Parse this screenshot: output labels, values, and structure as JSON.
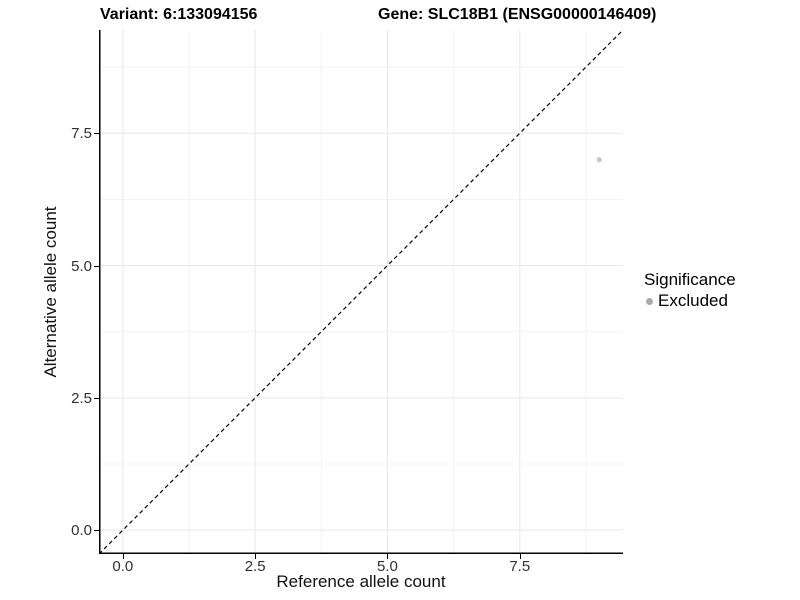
{
  "header": {
    "variant_title": "Variant: 6:133094156",
    "gene_title": "Gene: SLC18B1 (ENSG00000146409)"
  },
  "legend": {
    "title": "Significance",
    "entries": [
      {
        "label": "Excluded",
        "color": "#ababab"
      }
    ]
  },
  "chart_data": {
    "type": "scatter",
    "title_left": "Variant: 6:133094156",
    "title_right": "Gene: SLC18B1 (ENSG00000146409)",
    "xlabel": "Reference allele count",
    "ylabel": "Alternative allele count",
    "xlim": [
      -0.45,
      9.45
    ],
    "ylim": [
      -0.45,
      9.45
    ],
    "x_ticks": {
      "major": [
        0.0,
        2.5,
        5.0,
        7.5
      ],
      "labels": [
        "0.0",
        "2.5",
        "5.0",
        "7.5"
      ],
      "minor": [
        1.25,
        3.75,
        6.25,
        8.75
      ]
    },
    "y_ticks": {
      "major": [
        0.0,
        2.5,
        5.0,
        7.5
      ],
      "labels": [
        "0.0",
        "2.5",
        "5.0",
        "7.5"
      ],
      "minor": [
        1.25,
        3.75,
        6.25,
        8.75
      ]
    },
    "grid": "on",
    "legend_position": "right",
    "series": [
      {
        "name": "Excluded",
        "color": "#c6c6c6",
        "points": [
          {
            "x": 9,
            "y": 7
          }
        ]
      }
    ],
    "reference_line": {
      "type": "identity y=x",
      "style": "dashed",
      "color": "#000000",
      "x1": -0.45,
      "y1": -0.45,
      "x2": 9.45,
      "y2": 9.45
    },
    "colors": {
      "background": "#ffffff",
      "axis_line": "#000000",
      "grid_major": "#e8e8e8",
      "grid_minor": "#f3f3f3",
      "tick_text": "#303030"
    }
  }
}
